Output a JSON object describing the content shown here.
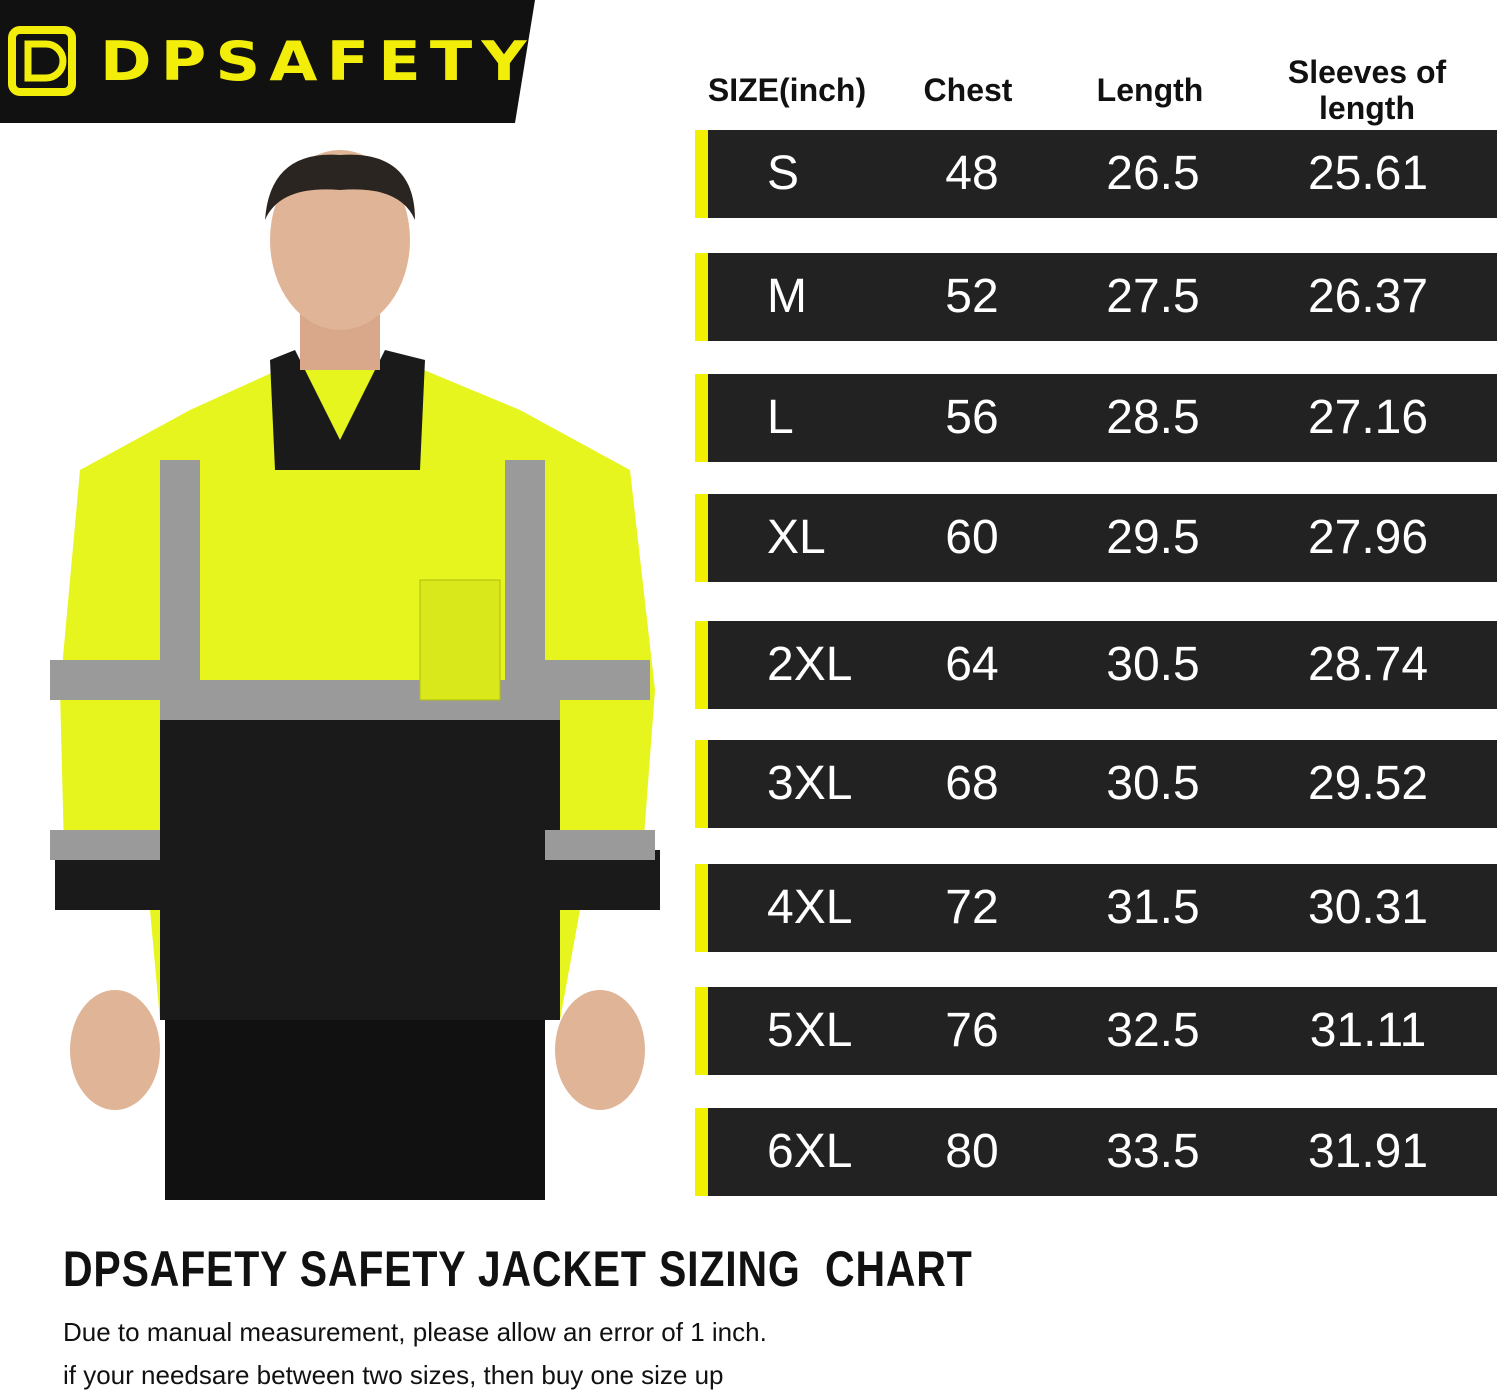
{
  "logo": {
    "text": "DPSAFETY"
  },
  "table": {
    "header": [
      "SIZE(inch)",
      "Chest",
      "Length",
      "Sleeves of length"
    ],
    "rows": [
      [
        "S",
        48,
        26.5,
        25.61
      ],
      [
        "M",
        52,
        27.5,
        26.37
      ],
      [
        "L",
        56,
        28.5,
        27.16
      ],
      [
        "XL",
        60,
        29.5,
        27.96
      ],
      [
        "2XL",
        64,
        30.5,
        28.74
      ],
      [
        "3XL",
        68,
        30.5,
        29.52
      ],
      [
        "4XL",
        72,
        31.5,
        30.31
      ],
      [
        "5XL",
        76,
        32.5,
        31.11
      ],
      [
        "6XL",
        80,
        33.5,
        31.91
      ]
    ]
  },
  "footer": {
    "title": "DPSAFETY SAFETY JACKET SIZING  CHART",
    "notes": [
      "Due to manual measurement, please allow an error of 1 inch.",
      "if your needsare between two sizes, then buy one size up"
    ]
  }
}
